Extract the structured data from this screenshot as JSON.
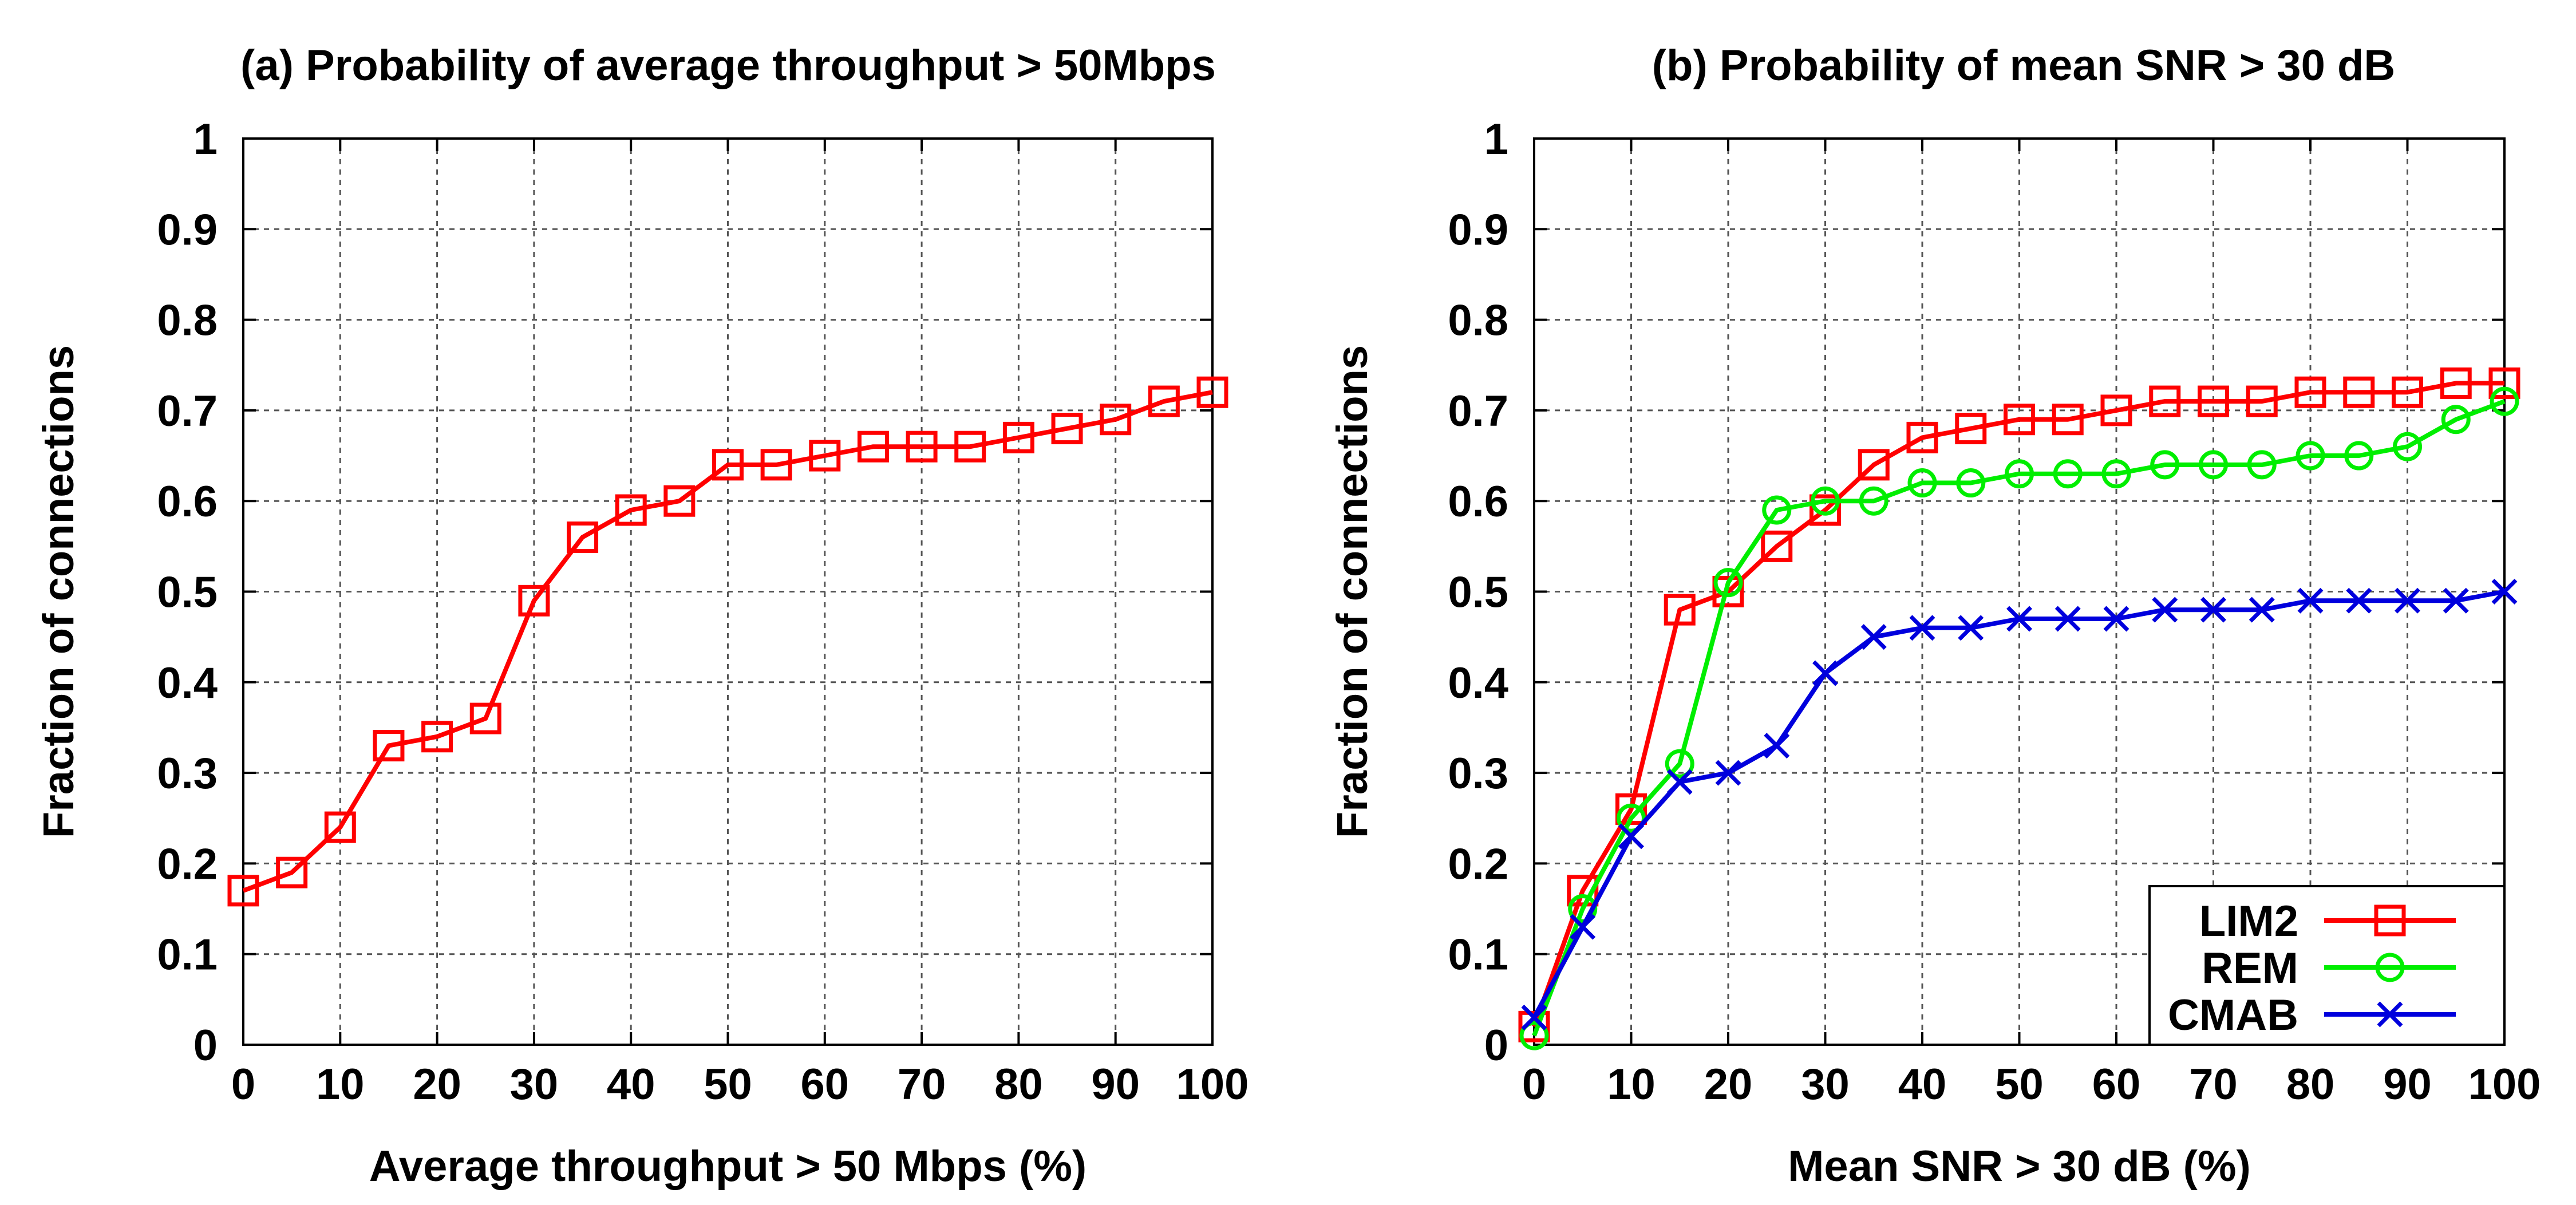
{
  "chart_data": [
    {
      "type": "line",
      "title": "(a) Probability of average throughput > 50Mbps",
      "xlabel": "Average throughput > 50 Mbps (%)",
      "ylabel": "Fraction of connections",
      "xlim": [
        0,
        100
      ],
      "ylim": [
        0,
        1
      ],
      "xticks": [
        "0",
        "10",
        "20",
        "30",
        "40",
        "50",
        "60",
        "70",
        "80",
        "90",
        "100"
      ],
      "yticks": [
        "0",
        "0.1",
        "0.2",
        "0.3",
        "0.4",
        "0.5",
        "0.6",
        "0.7",
        "0.8",
        "0.9",
        "1"
      ],
      "grid": true,
      "x": [
        0,
        5,
        10,
        15,
        20,
        25,
        30,
        35,
        40,
        45,
        50,
        55,
        60,
        65,
        70,
        75,
        80,
        85,
        90,
        95,
        100
      ],
      "series": [
        {
          "name": "",
          "color": "#ff0000",
          "marker": "square",
          "values": [
            0.17,
            0.19,
            0.24,
            0.33,
            0.34,
            0.36,
            0.49,
            0.56,
            0.59,
            0.6,
            0.64,
            0.64,
            0.65,
            0.66,
            0.66,
            0.66,
            0.67,
            0.68,
            0.69,
            0.71,
            0.72
          ]
        }
      ]
    },
    {
      "type": "line",
      "title": "(b) Probability of mean SNR > 30 dB",
      "xlabel": "Mean SNR > 30 dB (%)",
      "ylabel": "Fraction of connections",
      "xlim": [
        0,
        100
      ],
      "ylim": [
        0,
        1
      ],
      "xticks": [
        "0",
        "10",
        "20",
        "30",
        "40",
        "50",
        "60",
        "70",
        "80",
        "90",
        "100"
      ],
      "yticks": [
        "0",
        "0.1",
        "0.2",
        "0.3",
        "0.4",
        "0.5",
        "0.6",
        "0.7",
        "0.8",
        "0.9",
        "1"
      ],
      "grid": true,
      "legend": "bottom-right",
      "x": [
        0,
        5,
        10,
        15,
        20,
        25,
        30,
        35,
        40,
        45,
        50,
        55,
        60,
        65,
        70,
        75,
        80,
        85,
        90,
        95,
        100
      ],
      "series": [
        {
          "name": "LIM2",
          "color": "#ff0000",
          "marker": "square",
          "values": [
            0.02,
            0.17,
            0.26,
            0.48,
            0.5,
            0.55,
            0.59,
            0.64,
            0.67,
            0.68,
            0.69,
            0.69,
            0.7,
            0.71,
            0.71,
            0.71,
            0.72,
            0.72,
            0.72,
            0.73,
            0.73
          ]
        },
        {
          "name": "REM",
          "color": "#00ee00",
          "marker": "circle",
          "values": [
            0.01,
            0.15,
            0.25,
            0.31,
            0.51,
            0.59,
            0.6,
            0.6,
            0.62,
            0.62,
            0.63,
            0.63,
            0.63,
            0.64,
            0.64,
            0.64,
            0.65,
            0.65,
            0.66,
            0.69,
            0.71
          ]
        },
        {
          "name": "CMAB",
          "color": "#0000dd",
          "marker": "cross",
          "values": [
            0.03,
            0.13,
            0.23,
            0.29,
            0.3,
            0.33,
            0.41,
            0.45,
            0.46,
            0.46,
            0.47,
            0.47,
            0.47,
            0.48,
            0.48,
            0.48,
            0.49,
            0.49,
            0.49,
            0.49,
            0.5
          ]
        }
      ]
    }
  ]
}
